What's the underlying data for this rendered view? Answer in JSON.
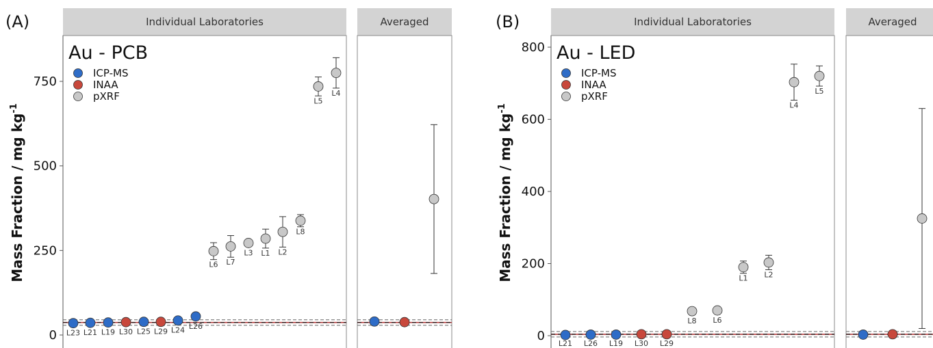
{
  "colors": {
    "ICP-MS": "#2e6cc7",
    "INAA": "#c8483c",
    "pXRF": "#c8c8c8",
    "strip": "#d3d3d3",
    "refline": "#b4383a"
  },
  "chart_data": [
    {
      "type": "scatter",
      "panel_letter": "(A)",
      "title": "Au - PCB",
      "ylabel": "Mass Fraction / mg kg",
      "ylabel_superscript": "-1",
      "ylim": [
        0,
        900
      ],
      "yticks": [
        "0",
        "250",
        "500",
        "750"
      ],
      "facets": [
        "Individual Laboratories",
        "Averaged"
      ],
      "legend": [
        "ICP-MS",
        "INAA",
        "pXRF"
      ],
      "legend_position": "top-left",
      "reference_line": 37,
      "individual": [
        {
          "lab": "L23",
          "method": "ICP-MS",
          "value": 35,
          "err": 3
        },
        {
          "lab": "L21",
          "method": "ICP-MS",
          "value": 36,
          "err": 4
        },
        {
          "lab": "L19",
          "method": "ICP-MS",
          "value": 37,
          "err": 3
        },
        {
          "lab": "L30",
          "method": "INAA",
          "value": 38,
          "err": 3
        },
        {
          "lab": "L25",
          "method": "ICP-MS",
          "value": 39,
          "err": 3
        },
        {
          "lab": "L29",
          "method": "INAA",
          "value": 39,
          "err": 3
        },
        {
          "lab": "L24",
          "method": "ICP-MS",
          "value": 43,
          "err": 3
        },
        {
          "lab": "L26",
          "method": "ICP-MS",
          "value": 55,
          "err": 6
        },
        {
          "lab": "L6",
          "method": "pXRF",
          "value": 248,
          "err": 25
        },
        {
          "lab": "L7",
          "method": "pXRF",
          "value": 262,
          "err": 32
        },
        {
          "lab": "L3",
          "method": "pXRF",
          "value": 272,
          "err": 10
        },
        {
          "lab": "L1",
          "method": "pXRF",
          "value": 285,
          "err": 28
        },
        {
          "lab": "L2",
          "method": "pXRF",
          "value": 305,
          "err": 45
        },
        {
          "lab": "L8",
          "method": "pXRF",
          "value": 338,
          "err": 18
        },
        {
          "lab": "L5",
          "method": "pXRF",
          "value": 735,
          "err": 28
        },
        {
          "lab": "L4",
          "method": "pXRF",
          "value": 775,
          "err": 45
        }
      ],
      "averaged": [
        {
          "method": "ICP-MS",
          "value": 40,
          "err": 4
        },
        {
          "method": "INAA",
          "value": 38,
          "err": 2
        },
        {
          "method": "pXRF",
          "value": 402,
          "err": 220
        }
      ]
    },
    {
      "type": "scatter",
      "panel_letter": "(B)",
      "title": "Au - LED",
      "ylabel": "Mass Fraction / mg kg",
      "ylabel_superscript": "-1",
      "ylim": [
        0,
        850
      ],
      "yticks": [
        "0",
        "200",
        "400",
        "600",
        "800"
      ],
      "facets": [
        "Individual Laboratories",
        "Averaged"
      ],
      "legend": [
        "ICP-MS",
        "INAA",
        "pXRF"
      ],
      "legend_position": "top-left",
      "reference_line": 4,
      "individual": [
        {
          "lab": "L21",
          "method": "ICP-MS",
          "value": 2,
          "err": 1
        },
        {
          "lab": "L26",
          "method": "ICP-MS",
          "value": 3,
          "err": 1
        },
        {
          "lab": "L19",
          "method": "ICP-MS",
          "value": 3,
          "err": 1
        },
        {
          "lab": "L30",
          "method": "INAA",
          "value": 4,
          "err": 1
        },
        {
          "lab": "L29",
          "method": "INAA",
          "value": 4,
          "err": 1
        },
        {
          "lab": "L8",
          "method": "pXRF",
          "value": 68,
          "err": 8
        },
        {
          "lab": "L6",
          "method": "pXRF",
          "value": 70,
          "err": 8
        },
        {
          "lab": "L1",
          "method": "pXRF",
          "value": 190,
          "err": 17
        },
        {
          "lab": "L2",
          "method": "pXRF",
          "value": 203,
          "err": 20
        },
        {
          "lab": "L4",
          "method": "pXRF",
          "value": 703,
          "err": 50
        },
        {
          "lab": "L5",
          "method": "pXRF",
          "value": 720,
          "err": 28
        }
      ],
      "averaged": [
        {
          "method": "ICP-MS",
          "value": 3,
          "err": 1
        },
        {
          "method": "INAA",
          "value": 4,
          "err": 1
        },
        {
          "method": "pXRF",
          "value": 325,
          "err": 305
        }
      ]
    }
  ]
}
